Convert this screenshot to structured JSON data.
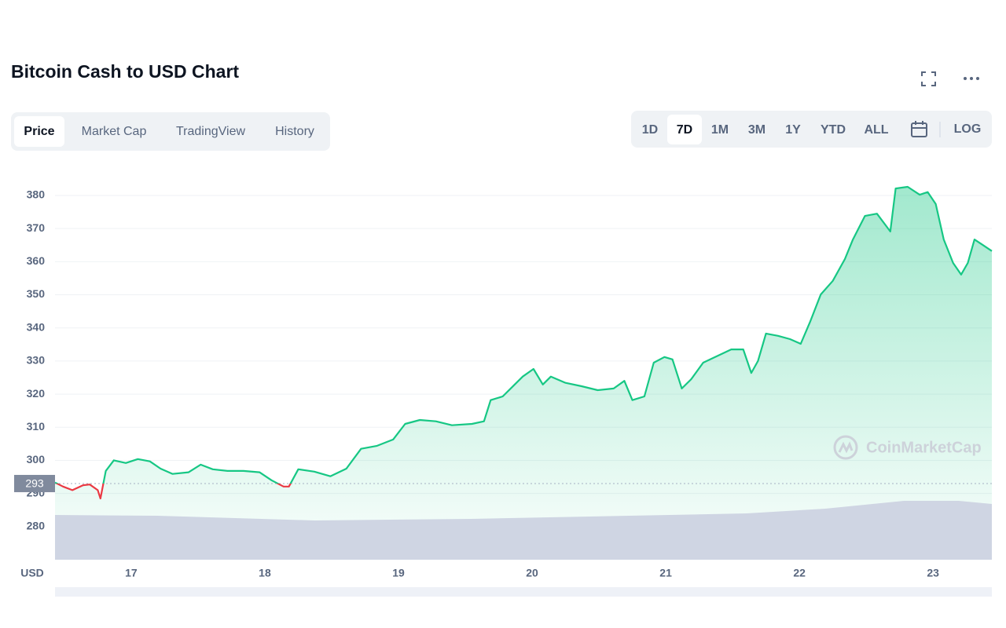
{
  "header": {
    "title": "Bitcoin Cash to USD Chart",
    "tabs": [
      "Price",
      "Market Cap",
      "TradingView",
      "History"
    ],
    "active_tab": 0,
    "ranges": [
      "1D",
      "7D",
      "1M",
      "3M",
      "1Y",
      "YTD",
      "ALL"
    ],
    "active_range": 1,
    "log_button": "LOG"
  },
  "chart_data": {
    "type": "line",
    "axis_label": "USD",
    "watermark": "CoinMarketCap",
    "x": [
      16.43,
      16.49,
      16.56,
      16.64,
      16.69,
      16.75,
      16.77,
      16.81,
      16.87,
      16.96,
      17.05,
      17.14,
      17.22,
      17.31,
      17.43,
      17.52,
      17.61,
      17.72,
      17.84,
      17.96,
      18.05,
      18.14,
      18.18,
      18.25,
      18.37,
      18.49,
      18.61,
      18.72,
      18.84,
      18.96,
      19.05,
      19.16,
      19.28,
      19.4,
      19.55,
      19.64,
      19.69,
      19.78,
      19.87,
      19.93,
      20.01,
      20.08,
      20.14,
      20.25,
      20.37,
      20.49,
      20.61,
      20.69,
      20.75,
      20.84,
      20.91,
      20.99,
      21.05,
      21.12,
      21.19,
      21.28,
      21.37,
      21.49,
      21.58,
      21.64,
      21.69,
      21.75,
      21.84,
      21.93,
      22.01,
      22.08,
      22.16,
      22.25,
      22.34,
      22.4,
      22.49,
      22.58,
      22.68,
      22.72,
      22.81,
      22.9,
      22.96,
      23.02,
      23.08,
      23.15,
      23.21,
      23.26,
      23.31,
      23.37,
      23.44
    ],
    "values": [
      293.3,
      292.1,
      291,
      292.5,
      292.7,
      291,
      288.5,
      296.8,
      300,
      299.2,
      300.4,
      299.7,
      297.5,
      295.9,
      296.4,
      298.7,
      297.3,
      296.8,
      296.8,
      296.4,
      294,
      292.1,
      292.1,
      297.3,
      296.6,
      295.2,
      297.5,
      303.5,
      304.4,
      306.3,
      311,
      312.2,
      311.8,
      310.6,
      311,
      311.8,
      318.2,
      319.3,
      322.9,
      325.3,
      327.6,
      322.9,
      325.3,
      323.4,
      322.4,
      321.2,
      321.7,
      324,
      318.2,
      319.3,
      329.5,
      331.2,
      330.5,
      321.7,
      324.5,
      329.5,
      331.2,
      333.5,
      333.5,
      326.4,
      330,
      338.3,
      337.6,
      336.6,
      335.2,
      341.8,
      350.1,
      354.2,
      360.8,
      366.7,
      373.8,
      374.5,
      369.1,
      382.1,
      382.6,
      380.2,
      381,
      377.4,
      366.7,
      359.6,
      356.1,
      359.6,
      366.7,
      365.1,
      363.2
    ],
    "baseline": 293,
    "up_color": "#16c784",
    "down_color": "#ea3943",
    "xlim": [
      16.43,
      23.44
    ],
    "xticks": [
      17,
      18,
      19,
      20,
      21,
      22,
      23
    ],
    "ylim": [
      270,
      389
    ],
    "yticks": [
      280,
      290,
      300,
      310,
      320,
      330,
      340,
      350,
      360,
      370,
      380
    ],
    "grid": true
  }
}
